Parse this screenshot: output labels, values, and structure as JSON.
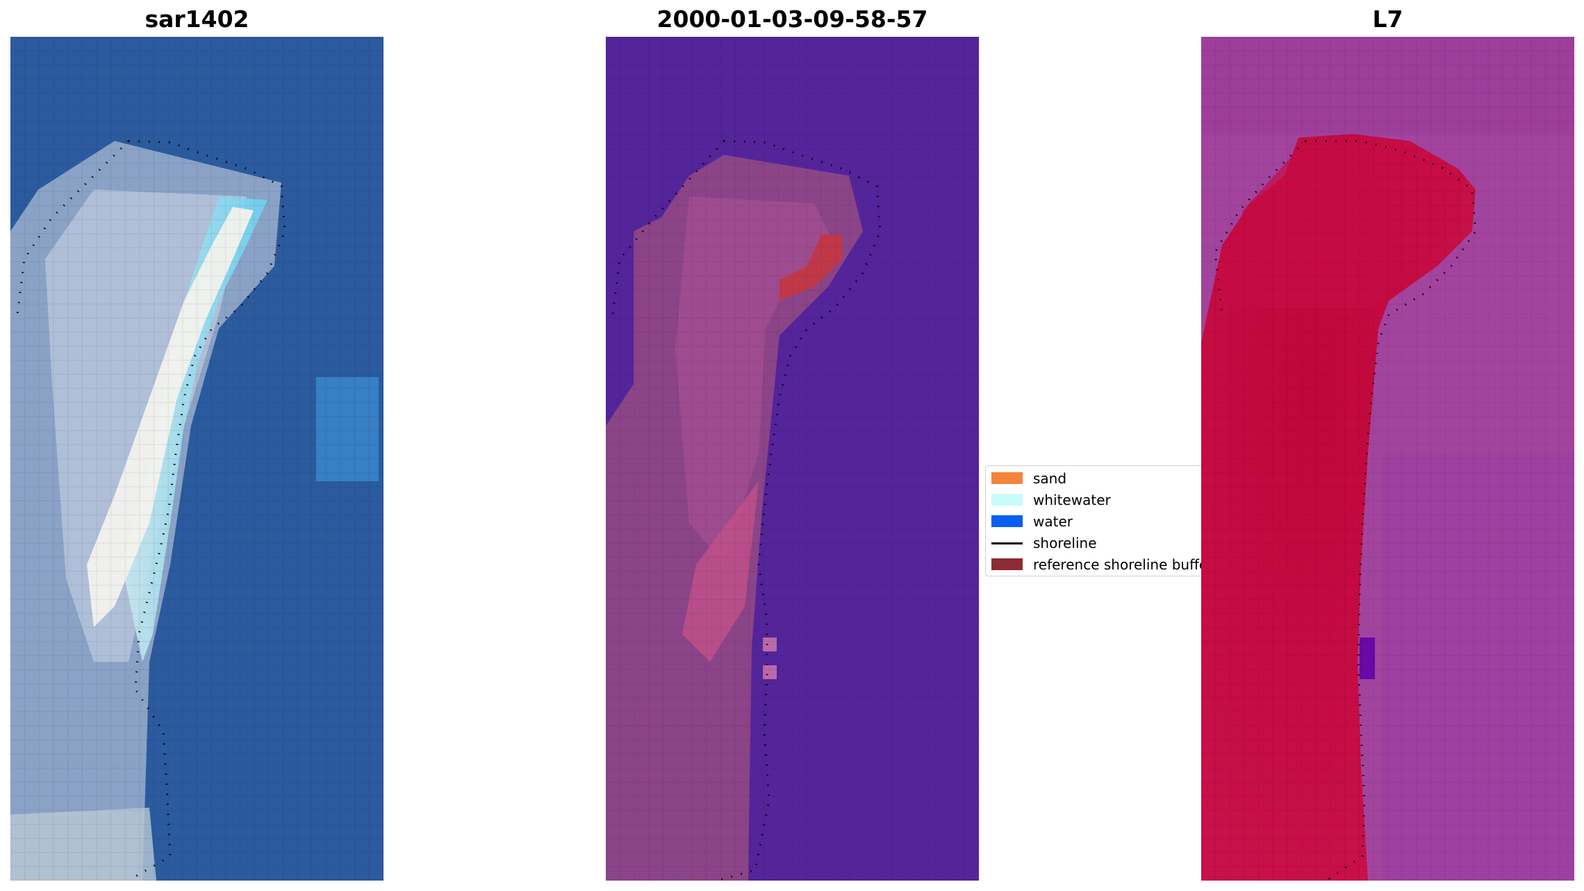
{
  "panels": [
    {
      "title": "sar1402"
    },
    {
      "title": "2000-01-03-09-58-57"
    },
    {
      "title": "L7"
    }
  ],
  "legend": {
    "items": [
      {
        "label": "sand",
        "color": "#f4843a",
        "kind": "patch"
      },
      {
        "label": "whitewater",
        "color": "#c8fcfc",
        "kind": "patch"
      },
      {
        "label": "water",
        "color": "#0a5ef0",
        "kind": "patch"
      },
      {
        "label": "shoreline",
        "color": "#000000",
        "kind": "line"
      },
      {
        "label": "reference shoreline buffer",
        "color": "#8e2a33",
        "kind": "patch"
      }
    ]
  },
  "colors": {
    "rgb_water": "#2a5aa0",
    "rgb_sand": "#9ab0cc",
    "rgb_bright": "#f2f2ee",
    "rgb_foam": "#9ee8f6",
    "class_water": "#54249a",
    "class_land": "#8c4488",
    "class_buffer": "#c03848",
    "index_low": "#a2449e",
    "index_high": "#c3063e",
    "index_dark": "#6a08a8"
  }
}
